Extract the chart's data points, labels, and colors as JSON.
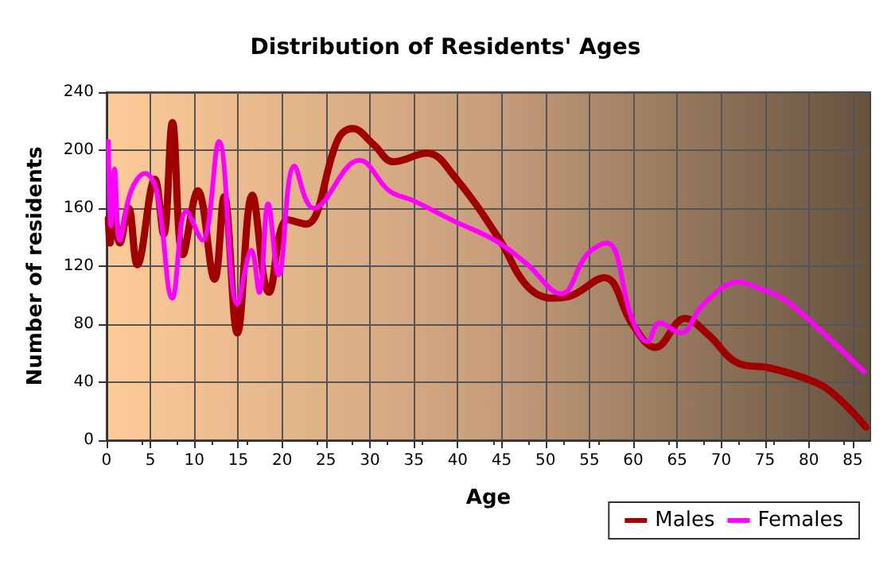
{
  "chart_data": {
    "type": "line",
    "title": "Distribution of Residents' Ages",
    "xlabel": "Age",
    "ylabel": "Number of residents",
    "xlim": [
      0,
      87
    ],
    "xticks": [
      0,
      5,
      10,
      15,
      20,
      25,
      30,
      35,
      40,
      45,
      50,
      55,
      60,
      65,
      70,
      75,
      80,
      85
    ],
    "ylim": [
      0,
      240
    ],
    "yticks": [
      0,
      40,
      80,
      120,
      160,
      200,
      240
    ],
    "grid": true,
    "legend": "bottom right",
    "line_style": "solid",
    "marker": "none",
    "series": [
      {
        "name": "Males",
        "color": "#a00000",
        "x": [
          0.2,
          0.4,
          0.8,
          1.5,
          2.5,
          3.5,
          5.5,
          6.5,
          7.5,
          8.7,
          10.4,
          12.3,
          13.4,
          14.9,
          16.6,
          18.5,
          20.6,
          22.7,
          26.4,
          28,
          30.4,
          32.7,
          36.5,
          39.6,
          44.8,
          47.8,
          50.7,
          52.6,
          56.7,
          59.9,
          62.5,
          65.9,
          68.5,
          72,
          75.4,
          79.4,
          82.4,
          86.5
        ],
        "values": [
          153,
          136,
          160,
          136,
          160,
          121,
          180,
          142,
          219,
          128,
          172,
          111,
          168,
          74,
          169,
          102,
          152,
          149,
          208,
          215,
          204,
          192,
          198,
          182,
          138,
          107,
          98,
          99,
          112,
          80,
          64,
          84,
          73,
          53,
          50,
          43,
          34,
          9
        ]
      },
      {
        "name": "Females",
        "color": "#ff00ff",
        "x": [
          0.2,
          0.5,
          0.9,
          1.5,
          2.8,
          4.4,
          5.7,
          7.5,
          9.1,
          10.9,
          12.8,
          14.9,
          16.5,
          17.4,
          18.4,
          19.6,
          21.4,
          23.6,
          28.8,
          32.2,
          35,
          39.6,
          44.2,
          47.8,
          51.8,
          54.7,
          57,
          59.9,
          61.6,
          63,
          65.4,
          68,
          72,
          74.2,
          77.2,
          81.8,
          86.3
        ],
        "values": [
          206,
          148,
          187,
          138,
          172,
          184,
          172,
          98,
          158,
          138,
          206,
          94,
          131,
          102,
          163,
          114,
          189,
          160,
          193,
          172,
          165,
          151,
          138,
          122,
          101,
          128,
          136,
          83,
          68,
          81,
          74,
          94,
          109,
          105,
          97,
          73,
          47
        ]
      }
    ]
  }
}
